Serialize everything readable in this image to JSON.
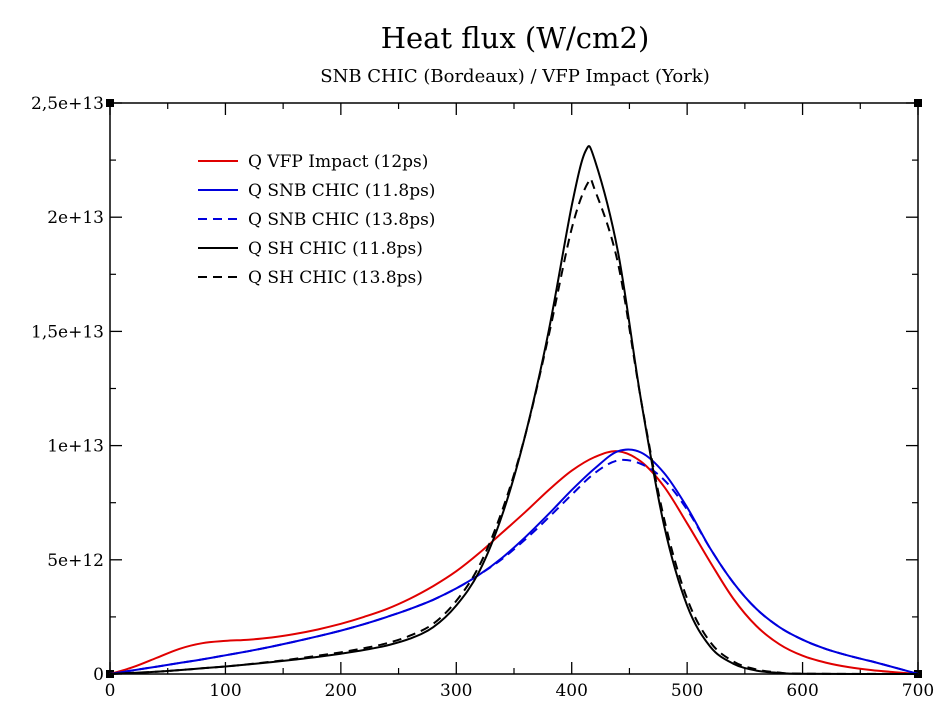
{
  "chart_data": {
    "type": "line",
    "title": "Heat flux (W/cm2)",
    "subtitle": "SNB CHIC (Bordeaux) / VFP Impact (York)",
    "xlabel": "",
    "ylabel": "",
    "xlim": [
      0,
      700
    ],
    "ylim": [
      0,
      25000000000000.0
    ],
    "grid": false,
    "legend_position": "top-left",
    "x_ticks": [
      {
        "value": 0,
        "label": "0"
      },
      {
        "value": 100,
        "label": "100"
      },
      {
        "value": 200,
        "label": "200"
      },
      {
        "value": 300,
        "label": "300"
      },
      {
        "value": 400,
        "label": "400"
      },
      {
        "value": 500,
        "label": "500"
      },
      {
        "value": 600,
        "label": "600"
      },
      {
        "value": 700,
        "label": "700"
      }
    ],
    "y_ticks": [
      {
        "value": 0,
        "label": "0"
      },
      {
        "value": 5000000000000.0,
        "label": "5e+12"
      },
      {
        "value": 10000000000000.0,
        "label": "1e+13"
      },
      {
        "value": 15000000000000.0,
        "label": "1,5e+13"
      },
      {
        "value": 20000000000000.0,
        "label": "2e+13"
      },
      {
        "value": 25000000000000.0,
        "label": "2,5e+13"
      }
    ],
    "series": [
      {
        "name": "Q VFP Impact (12ps)",
        "color": "#e00000",
        "dash": "solid",
        "points": [
          [
            0,
            0
          ],
          [
            20,
            300000000000.0
          ],
          [
            40,
            700000000000.0
          ],
          [
            60,
            1100000000000.0
          ],
          [
            80,
            1350000000000.0
          ],
          [
            100,
            1450000000000.0
          ],
          [
            120,
            1500000000000.0
          ],
          [
            140,
            1600000000000.0
          ],
          [
            160,
            1750000000000.0
          ],
          [
            180,
            1950000000000.0
          ],
          [
            200,
            2200000000000.0
          ],
          [
            220,
            2500000000000.0
          ],
          [
            240,
            2850000000000.0
          ],
          [
            260,
            3300000000000.0
          ],
          [
            280,
            3850000000000.0
          ],
          [
            300,
            4500000000000.0
          ],
          [
            320,
            5300000000000.0
          ],
          [
            340,
            6200000000000.0
          ],
          [
            360,
            7100000000000.0
          ],
          [
            380,
            8050000000000.0
          ],
          [
            400,
            8900000000000.0
          ],
          [
            420,
            9500000000000.0
          ],
          [
            440,
            9750000000000.0
          ],
          [
            460,
            9300000000000.0
          ],
          [
            480,
            8200000000000.0
          ],
          [
            500,
            6600000000000.0
          ],
          [
            520,
            4900000000000.0
          ],
          [
            540,
            3300000000000.0
          ],
          [
            560,
            2100000000000.0
          ],
          [
            580,
            1300000000000.0
          ],
          [
            600,
            800000000000.0
          ],
          [
            620,
            500000000000.0
          ],
          [
            640,
            300000000000.0
          ],
          [
            660,
            170000000000.0
          ],
          [
            680,
            80000000000.0
          ],
          [
            700,
            0
          ]
        ]
      },
      {
        "name": "Q SNB CHIC (11.8ps)",
        "color": "#0000dd",
        "dash": "solid",
        "points": [
          [
            0,
            0
          ],
          [
            20,
            160000000000.0
          ],
          [
            40,
            320000000000.0
          ],
          [
            60,
            480000000000.0
          ],
          [
            80,
            640000000000.0
          ],
          [
            100,
            820000000000.0
          ],
          [
            120,
            1000000000000.0
          ],
          [
            140,
            1200000000000.0
          ],
          [
            160,
            1420000000000.0
          ],
          [
            180,
            1650000000000.0
          ],
          [
            200,
            1900000000000.0
          ],
          [
            220,
            2180000000000.0
          ],
          [
            240,
            2500000000000.0
          ],
          [
            260,
            2850000000000.0
          ],
          [
            280,
            3250000000000.0
          ],
          [
            300,
            3750000000000.0
          ],
          [
            320,
            4350000000000.0
          ],
          [
            340,
            5100000000000.0
          ],
          [
            360,
            6000000000000.0
          ],
          [
            380,
            7000000000000.0
          ],
          [
            400,
            8050000000000.0
          ],
          [
            420,
            9000000000000.0
          ],
          [
            440,
            9750000000000.0
          ],
          [
            460,
            9700000000000.0
          ],
          [
            480,
            8800000000000.0
          ],
          [
            500,
            7300000000000.0
          ],
          [
            520,
            5500000000000.0
          ],
          [
            540,
            4000000000000.0
          ],
          [
            560,
            2850000000000.0
          ],
          [
            580,
            2050000000000.0
          ],
          [
            600,
            1500000000000.0
          ],
          [
            620,
            1100000000000.0
          ],
          [
            640,
            800000000000.0
          ],
          [
            660,
            550000000000.0
          ],
          [
            680,
            280000000000.0
          ],
          [
            700,
            0
          ]
        ]
      },
      {
        "name": "Q SNB CHIC (13.8ps)",
        "color": "#0000dd",
        "dash": "dashed",
        "points": [
          [
            0,
            0
          ],
          [
            20,
            160000000000.0
          ],
          [
            40,
            320000000000.0
          ],
          [
            60,
            480000000000.0
          ],
          [
            80,
            640000000000.0
          ],
          [
            100,
            820000000000.0
          ],
          [
            120,
            1000000000000.0
          ],
          [
            140,
            1200000000000.0
          ],
          [
            160,
            1420000000000.0
          ],
          [
            180,
            1650000000000.0
          ],
          [
            200,
            1900000000000.0
          ],
          [
            220,
            2180000000000.0
          ],
          [
            240,
            2500000000000.0
          ],
          [
            260,
            2850000000000.0
          ],
          [
            280,
            3250000000000.0
          ],
          [
            300,
            3750000000000.0
          ],
          [
            320,
            4350000000000.0
          ],
          [
            340,
            5050000000000.0
          ],
          [
            360,
            5900000000000.0
          ],
          [
            380,
            6850000000000.0
          ],
          [
            400,
            7850000000000.0
          ],
          [
            420,
            8800000000000.0
          ],
          [
            440,
            9350000000000.0
          ],
          [
            460,
            9200000000000.0
          ],
          [
            480,
            8500000000000.0
          ],
          [
            500,
            7200000000000.0
          ],
          [
            520,
            5500000000000.0
          ],
          [
            540,
            4000000000000.0
          ],
          [
            560,
            2850000000000.0
          ],
          [
            580,
            2050000000000.0
          ],
          [
            600,
            1500000000000.0
          ],
          [
            620,
            1100000000000.0
          ],
          [
            640,
            800000000000.0
          ],
          [
            660,
            550000000000.0
          ],
          [
            680,
            280000000000.0
          ],
          [
            700,
            0
          ]
        ]
      },
      {
        "name": "Q SH CHIC (11.8ps)",
        "color": "#000000",
        "dash": "solid",
        "points": [
          [
            0,
            0
          ],
          [
            20,
            50000000000.0
          ],
          [
            40,
            100000000000.0
          ],
          [
            60,
            170000000000.0
          ],
          [
            80,
            250000000000.0
          ],
          [
            100,
            330000000000.0
          ],
          [
            120,
            420000000000.0
          ],
          [
            140,
            520000000000.0
          ],
          [
            160,
            630000000000.0
          ],
          [
            180,
            750000000000.0
          ],
          [
            200,
            890000000000.0
          ],
          [
            220,
            1050000000000.0
          ],
          [
            240,
            1250000000000.0
          ],
          [
            260,
            1550000000000.0
          ],
          [
            280,
            2050000000000.0
          ],
          [
            300,
            3000000000000.0
          ],
          [
            320,
            4500000000000.0
          ],
          [
            340,
            7000000000000.0
          ],
          [
            360,
            10500000000000.0
          ],
          [
            380,
            15000000000000.0
          ],
          [
            400,
            20500000000000.0
          ],
          [
            412,
            22900000000000.0
          ],
          [
            420,
            22500000000000.0
          ],
          [
            440,
            18500000000000.0
          ],
          [
            460,
            12000000000000.0
          ],
          [
            480,
            6500000000000.0
          ],
          [
            500,
            3000000000000.0
          ],
          [
            520,
            1200000000000.0
          ],
          [
            540,
            450000000000.0
          ],
          [
            560,
            150000000000.0
          ],
          [
            580,
            50000000000.0
          ],
          [
            600,
            10000000000.0
          ],
          [
            700,
            0
          ]
        ]
      },
      {
        "name": "Q SH CHIC (13.8ps)",
        "color": "#000000",
        "dash": "dashed",
        "points": [
          [
            0,
            0
          ],
          [
            20,
            50000000000.0
          ],
          [
            40,
            100000000000.0
          ],
          [
            60,
            170000000000.0
          ],
          [
            80,
            250000000000.0
          ],
          [
            100,
            330000000000.0
          ],
          [
            120,
            430000000000.0
          ],
          [
            140,
            540000000000.0
          ],
          [
            160,
            660000000000.0
          ],
          [
            180,
            800000000000.0
          ],
          [
            200,
            950000000000.0
          ],
          [
            220,
            1130000000000.0
          ],
          [
            240,
            1350000000000.0
          ],
          [
            260,
            1680000000000.0
          ],
          [
            280,
            2200000000000.0
          ],
          [
            300,
            3200000000000.0
          ],
          [
            320,
            4750000000000.0
          ],
          [
            340,
            7200000000000.0
          ],
          [
            360,
            10500000000000.0
          ],
          [
            380,
            14800000000000.0
          ],
          [
            400,
            19500000000000.0
          ],
          [
            414,
            21500000000000.0
          ],
          [
            420,
            21200000000000.0
          ],
          [
            440,
            18000000000000.0
          ],
          [
            460,
            12000000000000.0
          ],
          [
            480,
            6800000000000.0
          ],
          [
            500,
            3300000000000.0
          ],
          [
            520,
            1400000000000.0
          ],
          [
            540,
            550000000000.0
          ],
          [
            560,
            200000000000.0
          ],
          [
            580,
            60000000000.0
          ],
          [
            600,
            15000000000.0
          ],
          [
            700,
            0
          ]
        ]
      }
    ]
  }
}
